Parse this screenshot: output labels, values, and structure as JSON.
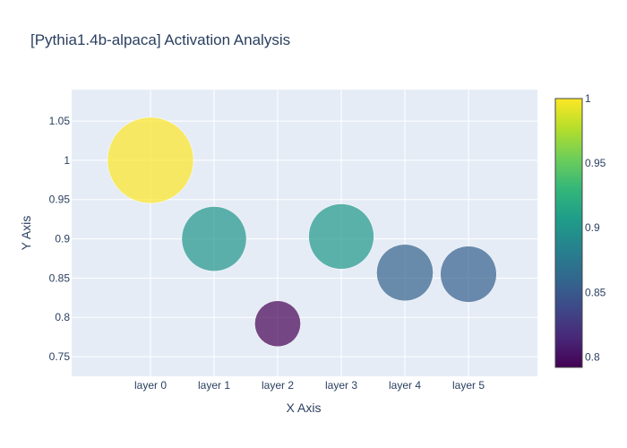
{
  "chart_data": {
    "type": "scatter",
    "title": "[Pythia1.4b-alpaca] Activation Analysis",
    "xlabel": "X Axis",
    "ylabel": "Y Axis",
    "categories": [
      "layer 0",
      "layer 1",
      "layer 2",
      "layer 3",
      "layer 4",
      "layer 5"
    ],
    "values": [
      1.0,
      0.9,
      0.792,
      0.903,
      0.857,
      0.855
    ],
    "marker_size": [
      1.0,
      0.9,
      0.792,
      0.903,
      0.857,
      0.855
    ],
    "color_values": [
      1.0,
      0.9,
      0.792,
      0.903,
      0.857,
      0.855
    ],
    "ylim": [
      0.725,
      1.09
    ],
    "yticks": [
      0.75,
      0.8,
      0.85,
      0.9,
      0.95,
      1,
      1.05
    ],
    "colorscale": "viridis",
    "colorbar": {
      "range": [
        0.792,
        1.0
      ],
      "ticks": [
        0.8,
        0.85,
        0.9,
        0.95,
        1
      ]
    },
    "marker_opacity": 0.7,
    "grid": true,
    "plot_background": "#e5ecf6"
  }
}
